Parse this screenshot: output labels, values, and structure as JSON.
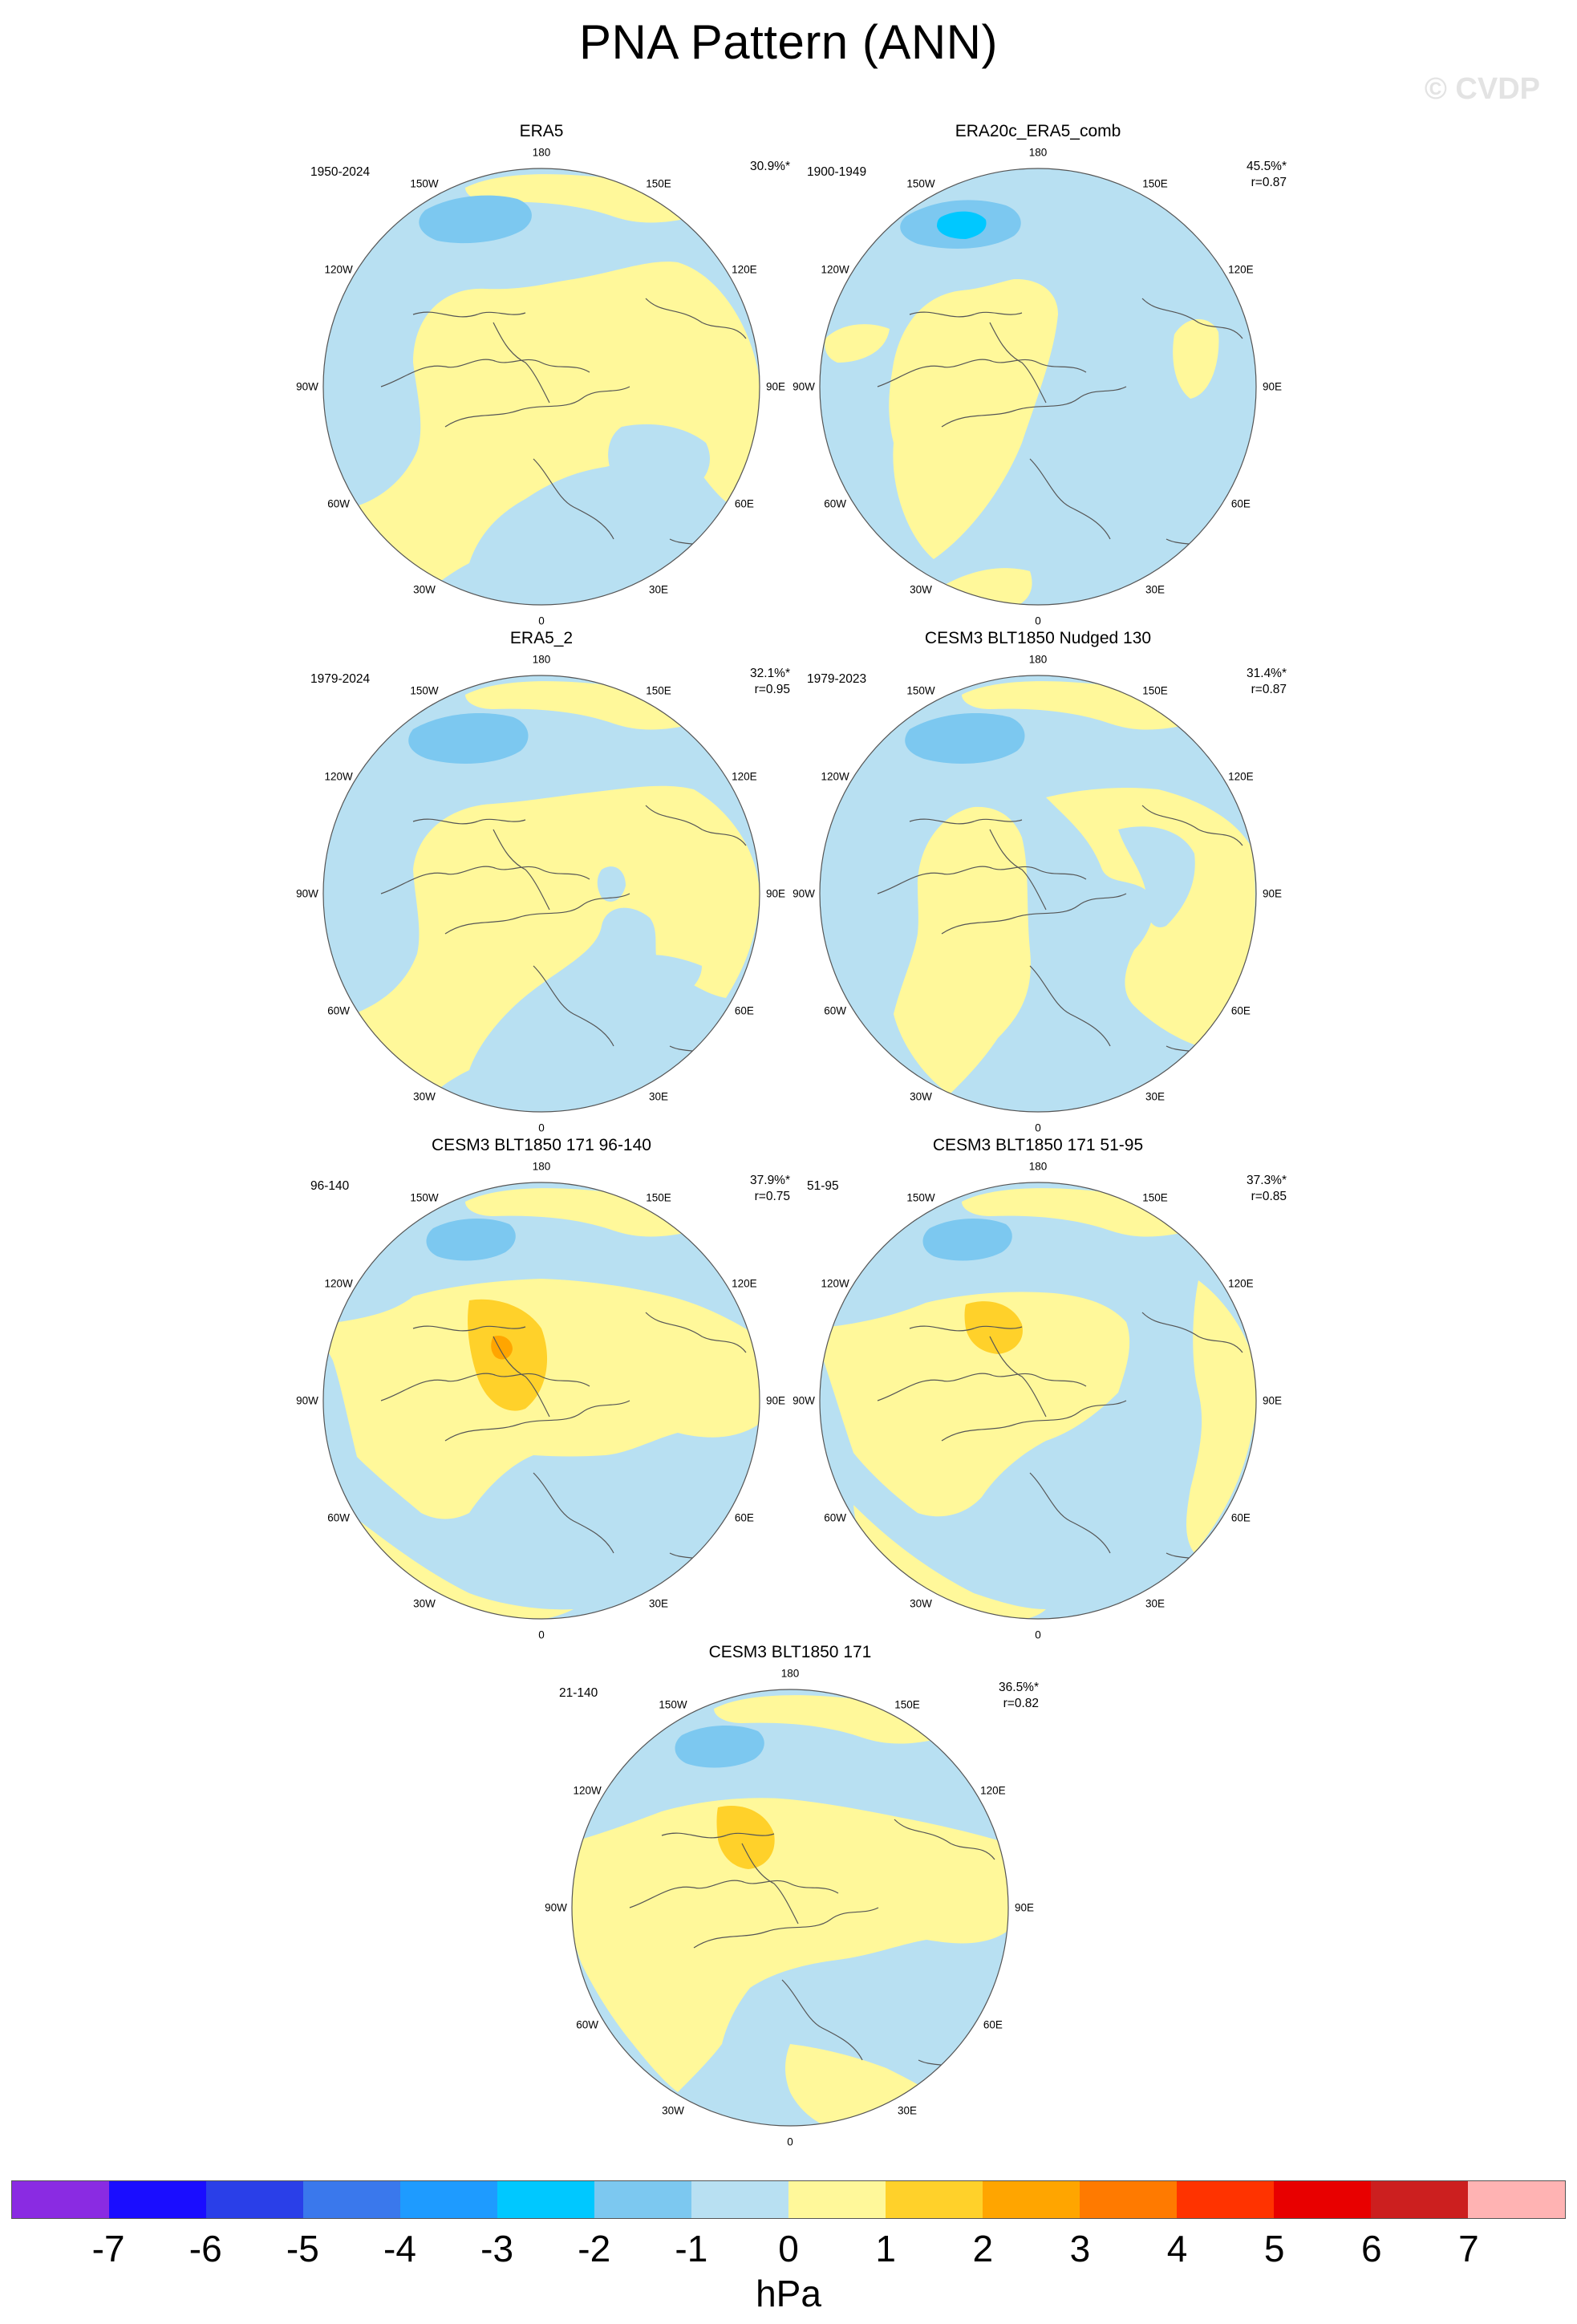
{
  "title": "PNA Pattern (ANN)",
  "watermark": "© CVDP",
  "colors": {
    "ocean_blue": "#b8e0f2",
    "land_line": "#555555"
  },
  "lon_labels": {
    "top": "180",
    "bottom": "0",
    "left": "90W",
    "right": "90E",
    "upper_left_1": "150W",
    "upper_left_2": "120W",
    "lower_left_1": "60W",
    "lower_left_2": "30W",
    "upper_right_1": "150E",
    "upper_right_2": "120E",
    "lower_right_1": "60E",
    "lower_right_2": "30E"
  },
  "panels": [
    {
      "title": "ERA5",
      "period": "1950-2024",
      "pct": "30.9%*",
      "r": "",
      "variant": "era5"
    },
    {
      "title": "ERA20c_ERA5_comb",
      "period": "1900-1949",
      "pct": "45.5%*",
      "r": "r=0.87",
      "variant": "era20c"
    },
    {
      "title": "ERA5_2",
      "period": "1979-2024",
      "pct": "32.1%*",
      "r": "r=0.95",
      "variant": "era5_2"
    },
    {
      "title": "CESM3 BLT1850 Nudged 130",
      "period": "1979-2023",
      "pct": "31.4%*",
      "r": "r=0.87",
      "variant": "nudged"
    },
    {
      "title": "CESM3 BLT1850 171 96-140",
      "period": "96-140",
      "pct": "37.9%*",
      "r": "r=0.75",
      "variant": "m96"
    },
    {
      "title": "CESM3 BLT1850 171 51-95",
      "period": "51-95",
      "pct": "37.3%*",
      "r": "r=0.85",
      "variant": "m51"
    },
    {
      "title": "CESM3 BLT1850 171",
      "period": "21-140",
      "pct": "36.5%*",
      "r": "r=0.82",
      "variant": "m21"
    }
  ],
  "colorbar": {
    "colors": [
      "#8a2be2",
      "#1a0dff",
      "#2a3fe8",
      "#3a78ec",
      "#1e9bff",
      "#00c8ff",
      "#7cc8f0",
      "#b8e0f2",
      "#fff89a",
      "#ffd12a",
      "#ffa500",
      "#ff7a00",
      "#ff3300",
      "#e80000",
      "#cc1f1f",
      "#ffb3b3"
    ],
    "ticks": [
      "-7",
      "-6",
      "-5",
      "-4",
      "-3",
      "-2",
      "-1",
      "0",
      "1",
      "2",
      "3",
      "4",
      "5",
      "6",
      "7"
    ],
    "unit": "hPa"
  }
}
